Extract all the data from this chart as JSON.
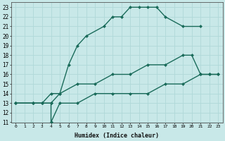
{
  "xlabel": "Humidex (Indice chaleur)",
  "bg_color": "#c8e8e8",
  "grid_color": "#b0d8d8",
  "line_color": "#1a6b5a",
  "xlim": [
    -0.5,
    23.5
  ],
  "ylim": [
    11,
    23.5
  ],
  "xticks": [
    0,
    1,
    2,
    3,
    4,
    5,
    6,
    7,
    8,
    9,
    10,
    11,
    12,
    13,
    14,
    15,
    16,
    17,
    18,
    19,
    20,
    21,
    22,
    23
  ],
  "yticks": [
    11,
    12,
    13,
    14,
    15,
    16,
    17,
    18,
    19,
    20,
    21,
    22,
    23
  ],
  "line1_x": [
    0,
    2,
    3,
    4,
    5,
    6,
    7,
    8,
    10,
    11,
    12,
    13,
    14,
    15,
    16,
    17,
    19,
    21
  ],
  "line1_y": [
    13,
    13,
    13,
    13,
    14,
    17,
    19,
    20,
    21,
    22,
    22,
    23,
    23,
    23,
    23,
    22,
    21,
    21
  ],
  "line2_x": [
    0,
    2,
    3,
    4,
    5,
    7,
    9,
    11,
    13,
    15,
    17,
    19,
    20,
    21,
    22,
    23
  ],
  "line2_y": [
    13,
    13,
    13,
    14,
    14,
    15,
    15,
    16,
    16,
    17,
    17,
    18,
    18,
    16,
    16,
    16
  ],
  "line3_x": [
    0,
    2,
    3,
    4,
    4,
    5,
    7,
    9,
    11,
    13,
    15,
    17,
    19,
    21,
    22,
    23
  ],
  "line3_y": [
    13,
    13,
    13,
    13,
    11,
    13,
    13,
    14,
    14,
    14,
    14,
    15,
    15,
    16,
    16,
    16
  ],
  "markersize": 2.5,
  "linewidth": 1.0
}
